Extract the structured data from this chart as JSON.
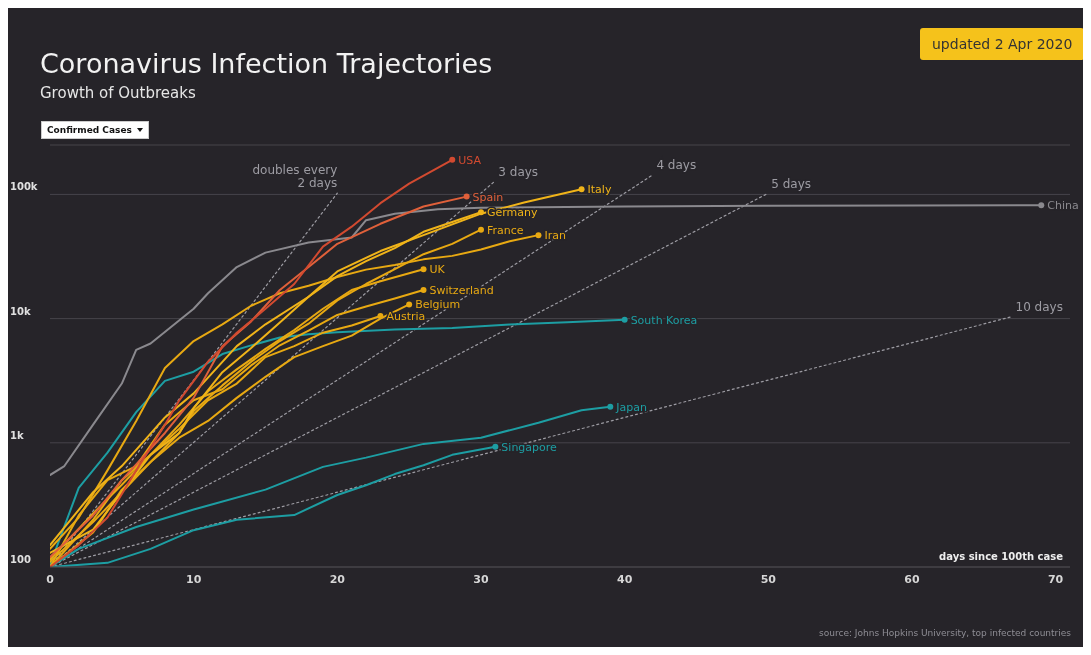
{
  "chart_data": {
    "type": "line",
    "title": "Coronavirus Infection Trajectories",
    "subtitle": "Growth of Outbreaks",
    "xlabel": "days since 100th case",
    "annotations": [
      "updated 2 Apr 2020",
      "Confirmed Cases",
      "source: Johns Hopkins University, top infected countries"
    ],
    "xlim": [
      0,
      71
    ],
    "xticks": [
      0,
      10,
      20,
      30,
      40,
      50,
      60,
      70
    ],
    "ylim": [
      100,
      250000
    ],
    "yticks": [
      {
        "value": 100,
        "label": "100"
      },
      {
        "value": 1000,
        "label": "1k"
      },
      {
        "value": 10000,
        "label": "10k"
      },
      {
        "value": 100000,
        "label": "100k"
      }
    ],
    "log": "y",
    "grid": "y",
    "legend": false,
    "series": [
      {
        "name": "doubles every 2 days",
        "color": "#9d9ca3",
        "line_style": "dotted",
        "x": [
          0,
          20
        ],
        "values": [
          100,
          102400
        ]
      },
      {
        "name": "3 days",
        "color": "#9d9ca3",
        "line_style": "dotted",
        "x": [
          0,
          31
        ],
        "values": [
          100,
          129000
        ]
      },
      {
        "name": "4 days",
        "color": "#9d9ca3",
        "line_style": "dotted",
        "x": [
          0,
          42
        ],
        "values": [
          100,
          144800
        ]
      },
      {
        "name": "5 days",
        "color": "#9d9ca3",
        "line_style": "dotted",
        "x": [
          0,
          50
        ],
        "values": [
          100,
          102400
        ]
      },
      {
        "name": "10 days",
        "color": "#9d9ca3",
        "line_style": "dotted",
        "x": [
          0,
          67
        ],
        "values": [
          100,
          10400
        ]
      },
      {
        "name": "China",
        "color": "#8a898e",
        "x": [
          0,
          1,
          3,
          5,
          6,
          7,
          10,
          11,
          13,
          15,
          18,
          21,
          22,
          24,
          27,
          30,
          40,
          50,
          60,
          69
        ],
        "values": [
          550,
          650,
          1400,
          3000,
          5600,
          6300,
          12000,
          16000,
          26000,
          34000,
          41000,
          45000,
          62000,
          70000,
          76000,
          78000,
          80000,
          81000,
          81500,
          82000
        ]
      },
      {
        "name": "South Korea",
        "color": "#1d9ea3",
        "x": [
          0,
          2,
          4,
          6,
          8,
          10,
          12,
          14,
          16,
          18,
          20,
          24,
          28,
          32,
          36,
          40
        ],
        "values": [
          104,
          433,
          833,
          1766,
          3150,
          3736,
          5186,
          6088,
          7041,
          7478,
          7755,
          8162,
          8413,
          8961,
          9332,
          9786
        ]
      },
      {
        "name": "Japan",
        "color": "#1d9ea3",
        "x": [
          0,
          2,
          6,
          10,
          15,
          19,
          22,
          26,
          30,
          34,
          37,
          39
        ],
        "values": [
          100,
          140,
          210,
          290,
          420,
          640,
          760,
          980,
          1100,
          1450,
          1830,
          1950
        ]
      },
      {
        "name": "Singapore",
        "color": "#1d9ea3",
        "x": [
          0,
          4,
          7,
          10,
          13,
          17,
          20,
          22,
          24,
          26,
          28,
          31
        ],
        "values": [
          100,
          108,
          140,
          198,
          240,
          262,
          380,
          455,
          560,
          660,
          800,
          930
        ]
      },
      {
        "name": "Austria",
        "color": "#e8a912",
        "x": [
          0,
          3,
          5,
          7,
          9,
          11,
          13,
          15,
          17,
          19,
          21,
          23
        ],
        "values": [
          100,
          240,
          500,
          800,
          1300,
          2200,
          3000,
          4900,
          6000,
          7700,
          8800,
          10500
        ]
      },
      {
        "name": "Belgium",
        "color": "#e8a912",
        "x": [
          0,
          3,
          5,
          7,
          9,
          11,
          13,
          15,
          17,
          19,
          21,
          23,
          25
        ],
        "values": [
          110,
          230,
          400,
          700,
          1100,
          1500,
          2300,
          3400,
          4900,
          6000,
          7300,
          10000,
          13000
        ]
      },
      {
        "name": "Switzerland",
        "color": "#e8a912",
        "x": [
          0,
          2,
          4,
          6,
          8,
          10,
          12,
          14,
          16,
          18,
          20,
          22,
          24,
          26
        ],
        "values": [
          100,
          260,
          500,
          650,
          1400,
          2200,
          2700,
          4200,
          6100,
          8000,
          10700,
          12500,
          14500,
          17000
        ]
      },
      {
        "name": "UK",
        "color": "#e8a912",
        "x": [
          0,
          3,
          5,
          7,
          9,
          11,
          13,
          15,
          17,
          19,
          21,
          23,
          26
        ],
        "values": [
          115,
          270,
          460,
          800,
          1400,
          2600,
          3900,
          5700,
          8100,
          12000,
          17000,
          20000,
          25000
        ]
      },
      {
        "name": "Iran",
        "color": "#e8a912",
        "x": [
          0,
          2,
          4,
          6,
          8,
          10,
          12,
          14,
          16,
          18,
          20,
          22,
          24,
          26,
          28,
          30,
          32,
          34
        ],
        "values": [
          140,
          250,
          600,
          1500,
          4000,
          6600,
          9000,
          12700,
          16000,
          18400,
          21600,
          24800,
          27000,
          30000,
          32000,
          36000,
          42000,
          47000
        ]
      },
      {
        "name": "France",
        "color": "#e8a912",
        "x": [
          0,
          3,
          5,
          7,
          9,
          10,
          12,
          14,
          16,
          18,
          20,
          22,
          24,
          26,
          28,
          30
        ],
        "values": [
          100,
          190,
          420,
          700,
          1200,
          1800,
          2900,
          4500,
          6600,
          9100,
          14000,
          19000,
          25000,
          33000,
          40000,
          52000
        ]
      },
      {
        "name": "Germany",
        "color": "#f0b419",
        "x": [
          0,
          3,
          5,
          7,
          9,
          10,
          12,
          14,
          16,
          18,
          20,
          22,
          24,
          26,
          28,
          30
        ],
        "values": [
          130,
          200,
          400,
          800,
          1200,
          1900,
          3700,
          5800,
          9300,
          15000,
          22000,
          29000,
          37000,
          50000,
          60000,
          72000
        ]
      },
      {
        "name": "Italy",
        "color": "#f0b419",
        "x": [
          0,
          3,
          5,
          8,
          10,
          13,
          15,
          18,
          20,
          23,
          26,
          30,
          33,
          37
        ],
        "values": [
          150,
          400,
          650,
          1600,
          2500,
          6000,
          9000,
          15000,
          24000,
          35000,
          47000,
          70000,
          86000,
          110000
        ]
      },
      {
        "name": "Spain",
        "color": "#e0603a",
        "x": [
          0,
          3,
          5,
          8,
          10,
          12,
          14,
          16,
          18,
          20,
          23,
          26,
          29
        ],
        "values": [
          120,
          260,
          500,
          1200,
          2300,
          6000,
          9500,
          17000,
          26000,
          40000,
          58000,
          80000,
          96000
        ]
      },
      {
        "name": "USA",
        "color": "#d24a30",
        "x": [
          0,
          2,
          4,
          6,
          8,
          9,
          11,
          13,
          15,
          17,
          19,
          21,
          23,
          25,
          28
        ],
        "values": [
          100,
          150,
          250,
          600,
          1400,
          2200,
          4500,
          7700,
          12000,
          19000,
          38000,
          55000,
          85000,
          122000,
          190000
        ]
      }
    ]
  }
}
